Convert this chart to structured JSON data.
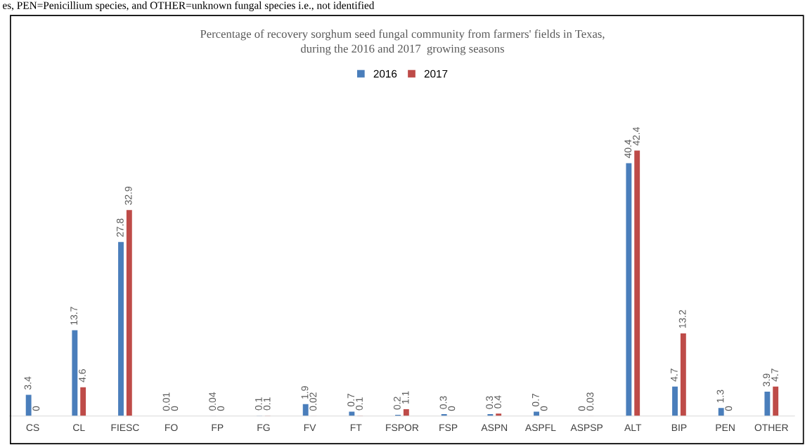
{
  "chart_data": {
    "type": "bar",
    "title": "Percentage of recovery sorghum seed fungal community from farmers' fields in Texas,\nduring the 2016 and 2017  growing seasons",
    "annotations": [
      "es, PEN=Penicillium species, and OTHER=unknown fungal species i.e., not identified"
    ],
    "categories": [
      "CS",
      "CL",
      "FIESC",
      "FO",
      "FP",
      "FG",
      "FV",
      "FT",
      "FSPOR",
      "FSP",
      "ASPN",
      "ASPFL",
      "ASPSP",
      "ALT",
      "BIP",
      "PEN",
      "OTHER"
    ],
    "series": [
      {
        "name": "2016",
        "color": "#4a7ebb",
        "values": [
          3.4,
          13.7,
          27.8,
          0.01,
          0.04,
          0.1,
          1.9,
          0.7,
          0.2,
          0.3,
          0.3,
          0.7,
          0,
          40.4,
          4.7,
          1.3,
          3.9
        ]
      },
      {
        "name": "2017",
        "color": "#be4b48",
        "values": [
          0,
          4.6,
          32.9,
          0,
          0,
          0.1,
          0.02,
          0.1,
          1.1,
          0,
          0.4,
          0,
          0.03,
          42.4,
          13.2,
          0,
          4.7
        ]
      }
    ],
    "data_labels": true,
    "legend": "top",
    "grid": false
  }
}
